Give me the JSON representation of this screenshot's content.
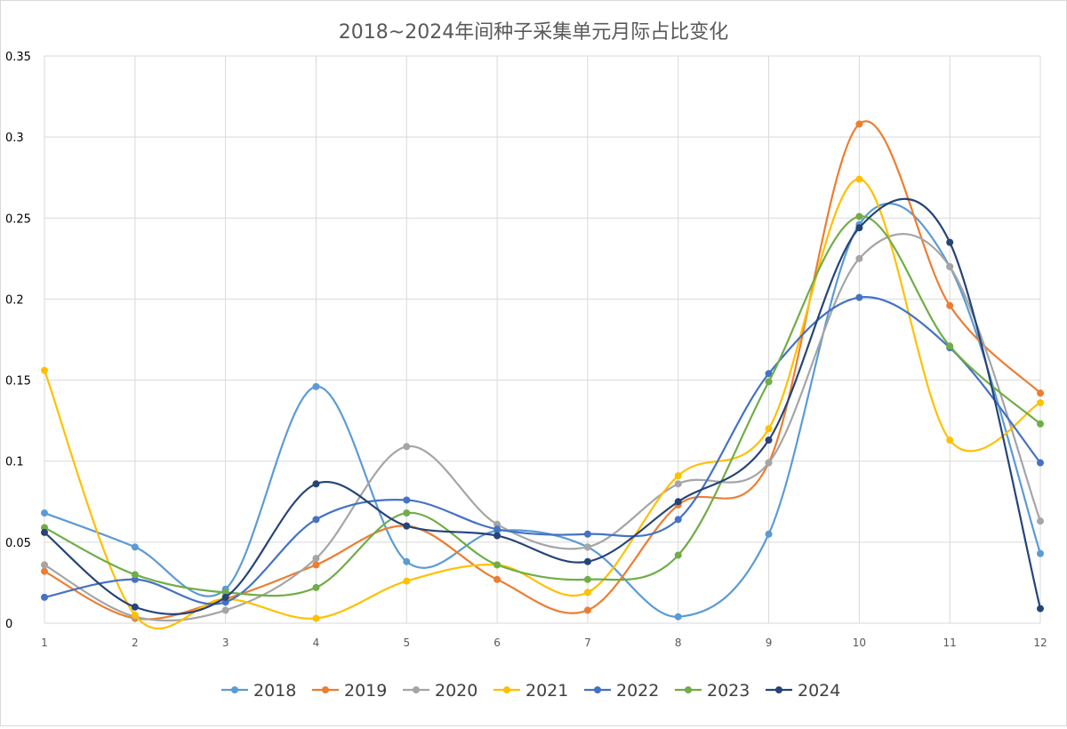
{
  "chart_data": {
    "type": "line",
    "smooth": true,
    "title": "2018~2024年间种子采集单元月际占比变化",
    "xlabel": "",
    "ylabel": "",
    "x": [
      1,
      2,
      3,
      4,
      5,
      6,
      7,
      8,
      9,
      10,
      11,
      12
    ],
    "ylim": [
      0,
      0.35
    ],
    "yticks": [
      "0",
      "0.05",
      "0.1",
      "0.15",
      "0.2",
      "0.25",
      "0.3",
      "0.35"
    ],
    "grid": true,
    "legend_position": "bottom",
    "series": [
      {
        "name": "2018",
        "color": "#5B9BD5",
        "values": [
          0.068,
          0.047,
          0.021,
          0.146,
          0.038,
          0.057,
          0.047,
          0.004,
          0.055,
          0.246,
          0.22,
          0.043
        ]
      },
      {
        "name": "2019",
        "color": "#ED7D31",
        "values": [
          0.032,
          0.003,
          0.015,
          0.036,
          0.06,
          0.027,
          0.008,
          0.073,
          0.099,
          0.308,
          0.196,
          0.142
        ]
      },
      {
        "name": "2020",
        "color": "#A5A5A5",
        "values": [
          0.036,
          0.004,
          0.008,
          0.04,
          0.109,
          0.061,
          0.047,
          0.086,
          0.099,
          0.225,
          0.22,
          0.063
        ]
      },
      {
        "name": "2021",
        "color": "#FFC000",
        "values": [
          0.156,
          0.005,
          0.015,
          0.003,
          0.026,
          0.036,
          0.019,
          0.091,
          0.12,
          0.274,
          0.113,
          0.136
        ]
      },
      {
        "name": "2022",
        "color": "#4472C4",
        "values": [
          0.016,
          0.027,
          0.013,
          0.064,
          0.076,
          0.058,
          0.055,
          0.064,
          0.154,
          0.201,
          0.17,
          0.099
        ]
      },
      {
        "name": "2023",
        "color": "#70AD47",
        "values": [
          0.059,
          0.03,
          0.019,
          0.022,
          0.068,
          0.036,
          0.027,
          0.042,
          0.149,
          0.251,
          0.171,
          0.123
        ]
      },
      {
        "name": "2024",
        "color": "#264478",
        "values": [
          0.056,
          0.01,
          0.016,
          0.086,
          0.06,
          0.054,
          0.038,
          0.075,
          0.113,
          0.244,
          0.235,
          0.009
        ]
      }
    ]
  }
}
